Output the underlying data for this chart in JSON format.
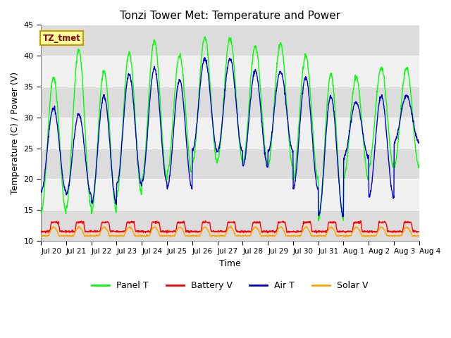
{
  "title": "Tonzi Tower Met: Temperature and Power",
  "xlabel": "Time",
  "ylabel": "Temperature (C) / Power (V)",
  "ylim": [
    10,
    45
  ],
  "yticks": [
    10,
    15,
    20,
    25,
    30,
    35,
    40,
    45
  ],
  "xtick_labels": [
    "Jul 20",
    "Jul 21",
    "Jul 22",
    "Jul 23",
    "Jul 24",
    "Jul 25",
    "Jul 26",
    "Jul 27",
    "Jul 28",
    "Jul 29",
    "Jul 30",
    "Jul 31",
    "Aug 1",
    "Aug 2",
    "Aug 3",
    "Aug 4"
  ],
  "annotation_text": "TZ_tmet",
  "annotation_bg": "#FFFFA0",
  "annotation_fg": "#8B0000",
  "panel_t_color": "#00FF00",
  "battery_v_color": "#FF0000",
  "air_t_color": "#0000CC",
  "solar_v_color": "#FFA500",
  "band_color_dark": "#DCDCDC",
  "band_color_light": "#F0F0F0",
  "n_days": 15,
  "panel_t_peaks": [
    36.5,
    41.0,
    37.5,
    40.5,
    42.5,
    40.0,
    43.0,
    43.0,
    41.5,
    42.0,
    40.0,
    37.0,
    36.5,
    38.0,
    38.0
  ],
  "panel_t_troughs": [
    14.5,
    15.5,
    14.5,
    17.5,
    20.0,
    21.0,
    22.5,
    23.0,
    22.5,
    22.0,
    20.0,
    13.5,
    20.0,
    22.0,
    22.0
  ],
  "air_t_peaks": [
    31.5,
    30.5,
    33.5,
    37.0,
    38.0,
    36.0,
    39.5,
    39.5,
    37.5,
    37.5,
    36.5,
    33.5,
    32.5,
    33.5,
    33.5
  ],
  "air_t_troughs": [
    18.0,
    17.5,
    16.0,
    19.0,
    19.5,
    18.5,
    24.5,
    24.5,
    22.0,
    24.5,
    18.5,
    14.0,
    23.5,
    17.0,
    26.0
  ],
  "battery_v_base": 11.5,
  "battery_v_spike": 13.0,
  "solar_v_base": 10.8,
  "solar_v_spike": 12.2
}
